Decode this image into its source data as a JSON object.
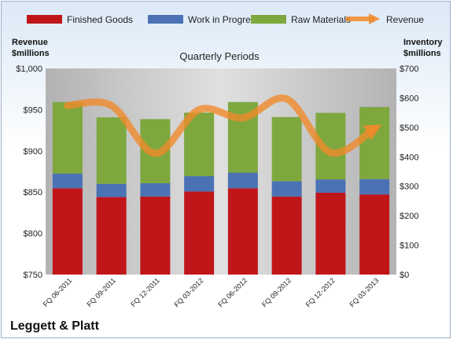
{
  "chart_data": {
    "type": "bar",
    "title": "Quarterly Periods",
    "company": "Leggett & Platt",
    "y_left_label": [
      "Revenue",
      "$millions"
    ],
    "y_right_label": [
      "Inventory",
      "$millions"
    ],
    "categories": [
      "FQ 06-2011",
      "FQ 09-2011",
      "FQ 12-2011",
      "FQ 03-2012",
      "FQ 06-2012",
      "FQ 09-2012",
      "FQ 12-2012",
      "FQ 03-2013"
    ],
    "stack_series": [
      {
        "name": "Finished Goods",
        "color": "#c0161a",
        "values": [
          293,
          263,
          265,
          282,
          293,
          265,
          278,
          272
        ]
      },
      {
        "name": "Work in Progress",
        "color": "#4a72b4",
        "values": [
          50,
          45,
          45,
          52,
          53,
          52,
          45,
          52
        ]
      },
      {
        "name": "Raw Materials",
        "color": "#7ea83e",
        "values": [
          243,
          226,
          218,
          216,
          240,
          218,
          226,
          245
        ]
      }
    ],
    "line_series": {
      "name": "Revenue",
      "color": "#f0892a",
      "values": [
        955,
        955,
        897,
        950,
        940,
        963,
        898,
        927
      ]
    },
    "y_left": {
      "min": 750,
      "max": 1000,
      "step": 50,
      "ticks": [
        "$750",
        "$800",
        "$850",
        "$900",
        "$950",
        "$1,000"
      ]
    },
    "y_right": {
      "min": 0,
      "max": 700,
      "step": 100,
      "ticks": [
        "$0",
        "$100",
        "$200",
        "$300",
        "$400",
        "$500",
        "$600",
        "$700"
      ]
    },
    "legend_position": "top",
    "grid": false,
    "colors": {
      "plot_bg": "#a6a6a6",
      "plot_light": "#d9d9d9"
    }
  }
}
